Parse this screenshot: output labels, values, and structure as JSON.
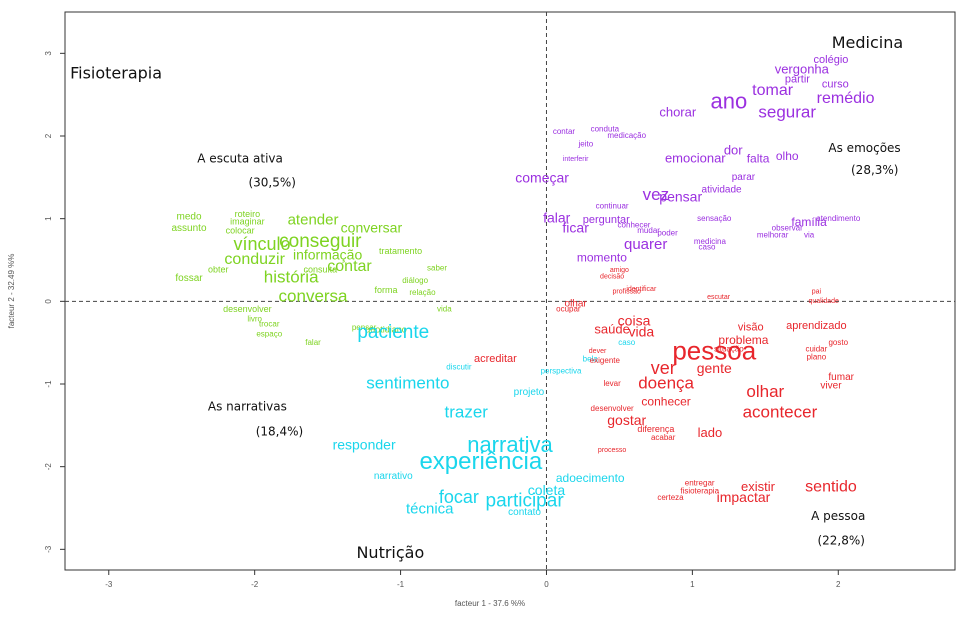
{
  "chart_data": {
    "type": "scatter",
    "xlabel": "facteur  1  - 37.6 %%",
    "ylabel": "facteur  2 - 32.49 %%",
    "xlim": [
      -3.3,
      2.8
    ],
    "ylim": [
      -3.25,
      3.5
    ],
    "x_ticks": [
      -3,
      -2,
      -1,
      0,
      1,
      2
    ],
    "x_tick_labels": [
      "-3",
      "-2",
      "-1",
      "0",
      "1",
      "2"
    ],
    "y_ticks": [
      -3,
      -2,
      -1,
      0,
      1,
      2,
      3
    ],
    "y_tick_labels": [
      "-3",
      "-2",
      "-1",
      "0",
      "1",
      "2",
      "3"
    ],
    "reference_lines": {
      "x": 0,
      "y": 0,
      "style": "dashed"
    },
    "colors": {
      "green": "#7ed321",
      "purple": "#9b30e0",
      "cyan": "#1ad6ec",
      "red": "#e8262c"
    },
    "annotations": [
      {
        "text": "Fisioterapia",
        "x": -2.95,
        "y": 2.75,
        "size": 16
      },
      {
        "text": "Medicina",
        "x": 2.2,
        "y": 3.12,
        "size": 16
      },
      {
        "text": "Nutrição",
        "x": -1.07,
        "y": -3.05,
        "size": 16
      },
      {
        "text": "A escuta ativa",
        "x": -2.1,
        "y": 1.72,
        "size": 12
      },
      {
        "text": "(30,5%)",
        "x": -1.88,
        "y": 1.43,
        "size": 12
      },
      {
        "text": "As emoções",
        "x": 2.18,
        "y": 1.85,
        "size": 12
      },
      {
        "text": "(28,3%)",
        "x": 2.25,
        "y": 1.58,
        "size": 12
      },
      {
        "text": "As narrativas",
        "x": -2.05,
        "y": -1.28,
        "size": 12
      },
      {
        "text": "(18,4%)",
        "x": -1.83,
        "y": -1.58,
        "size": 12
      },
      {
        "text": "A pessoa",
        "x": 2.0,
        "y": -2.6,
        "size": 12
      },
      {
        "text": "(22,8%)",
        "x": 2.02,
        "y": -2.9,
        "size": 12
      }
    ],
    "series": [
      {
        "name": "",
        "color_key": "green",
        "points": [
          {
            "label": "vínculo",
            "x": -1.95,
            "y": 0.68,
            "size": 18
          },
          {
            "label": "conseguir",
            "x": -1.55,
            "y": 0.72,
            "size": 19
          },
          {
            "label": "atender",
            "x": -1.6,
            "y": 0.98,
            "size": 15
          },
          {
            "label": "conversar",
            "x": -1.2,
            "y": 0.88,
            "size": 14
          },
          {
            "label": "informação",
            "x": -1.5,
            "y": 0.55,
            "size": 14
          },
          {
            "label": "conduzir",
            "x": -2.0,
            "y": 0.5,
            "size": 16
          },
          {
            "label": "contar",
            "x": -1.35,
            "y": 0.42,
            "size": 16
          },
          {
            "label": "história",
            "x": -1.75,
            "y": 0.28,
            "size": 17
          },
          {
            "label": "conversa",
            "x": -1.6,
            "y": 0.05,
            "size": 17
          },
          {
            "label": "medo",
            "x": -2.45,
            "y": 1.02,
            "size": 10
          },
          {
            "label": "roteiro",
            "x": -2.05,
            "y": 1.05,
            "size": 9
          },
          {
            "label": "imaginar",
            "x": -2.05,
            "y": 0.96,
            "size": 9
          },
          {
            "label": "assunto",
            "x": -2.45,
            "y": 0.88,
            "size": 10
          },
          {
            "label": "colocar",
            "x": -2.1,
            "y": 0.85,
            "size": 9
          },
          {
            "label": "fossar",
            "x": -2.45,
            "y": 0.28,
            "size": 10
          },
          {
            "label": "obter",
            "x": -2.25,
            "y": 0.38,
            "size": 9
          },
          {
            "label": "consulta",
            "x": -1.55,
            "y": 0.38,
            "size": 9
          },
          {
            "label": "quotidiano",
            "x": -1.1,
            "y": -0.35,
            "size": 9
          },
          {
            "label": "tratamento",
            "x": -1.0,
            "y": 0.6,
            "size": 9
          },
          {
            "label": "forma",
            "x": -1.1,
            "y": 0.13,
            "size": 9
          },
          {
            "label": "relação",
            "x": -0.85,
            "y": 0.1,
            "size": 8
          },
          {
            "label": "saber",
            "x": -0.75,
            "y": 0.4,
            "size": 8
          },
          {
            "label": "diálogo",
            "x": -0.9,
            "y": 0.25,
            "size": 8
          },
          {
            "label": "desenvolver",
            "x": -2.05,
            "y": -0.1,
            "size": 9
          },
          {
            "label": "livro",
            "x": -2.0,
            "y": -0.22,
            "size": 8
          },
          {
            "label": "trocar",
            "x": -1.9,
            "y": -0.28,
            "size": 8
          },
          {
            "label": "pensar",
            "x": -1.25,
            "y": -0.32,
            "size": 8
          },
          {
            "label": "falar",
            "x": -1.6,
            "y": -0.5,
            "size": 8
          },
          {
            "label": "espaço",
            "x": -1.9,
            "y": -0.4,
            "size": 8
          },
          {
            "label": "vida",
            "x": -0.7,
            "y": -0.1,
            "size": 8
          }
        ]
      },
      {
        "name": "",
        "color_key": "purple",
        "points": [
          {
            "label": "ano",
            "x": 1.25,
            "y": 2.4,
            "size": 22
          },
          {
            "label": "segurar",
            "x": 1.65,
            "y": 2.28,
            "size": 17
          },
          {
            "label": "tomar",
            "x": 1.55,
            "y": 2.55,
            "size": 16
          },
          {
            "label": "remédio",
            "x": 2.05,
            "y": 2.45,
            "size": 16
          },
          {
            "label": "vergonha",
            "x": 1.75,
            "y": 2.8,
            "size": 13
          },
          {
            "label": "colégio",
            "x": 1.95,
            "y": 2.92,
            "size": 11
          },
          {
            "label": "partir",
            "x": 1.72,
            "y": 2.68,
            "size": 11
          },
          {
            "label": "curso",
            "x": 1.98,
            "y": 2.62,
            "size": 11
          },
          {
            "label": "chorar",
            "x": 0.9,
            "y": 2.28,
            "size": 13
          },
          {
            "label": "dor",
            "x": 1.28,
            "y": 1.82,
            "size": 13
          },
          {
            "label": "emocionar",
            "x": 1.02,
            "y": 1.72,
            "size": 13
          },
          {
            "label": "falta",
            "x": 1.45,
            "y": 1.72,
            "size": 12
          },
          {
            "label": "olho",
            "x": 1.65,
            "y": 1.75,
            "size": 12
          },
          {
            "label": "começar",
            "x": -0.03,
            "y": 1.48,
            "size": 14
          },
          {
            "label": "vez",
            "x": 0.75,
            "y": 1.28,
            "size": 17
          },
          {
            "label": "pensar",
            "x": 0.92,
            "y": 1.25,
            "size": 14
          },
          {
            "label": "atividade",
            "x": 1.2,
            "y": 1.35,
            "size": 10
          },
          {
            "label": "falar",
            "x": 0.07,
            "y": 1.0,
            "size": 14
          },
          {
            "label": "ficar",
            "x": 0.2,
            "y": 0.88,
            "size": 14
          },
          {
            "label": "perguntar",
            "x": 0.41,
            "y": 0.98,
            "size": 11
          },
          {
            "label": "quarer",
            "x": 0.68,
            "y": 0.68,
            "size": 15
          },
          {
            "label": "família",
            "x": 1.8,
            "y": 0.95,
            "size": 12
          },
          {
            "label": "momento",
            "x": 0.38,
            "y": 0.52,
            "size": 12
          },
          {
            "label": "atendimento",
            "x": 2.0,
            "y": 1.0,
            "size": 8
          },
          {
            "label": "sensação",
            "x": 1.15,
            "y": 1.0,
            "size": 8
          },
          {
            "label": "continuar",
            "x": 0.45,
            "y": 1.15,
            "size": 8
          },
          {
            "label": "contar",
            "x": 0.12,
            "y": 2.05,
            "size": 8
          },
          {
            "label": "conduta",
            "x": 0.4,
            "y": 2.08,
            "size": 8
          },
          {
            "label": "medicação",
            "x": 0.55,
            "y": 2.0,
            "size": 8
          },
          {
            "label": "jeito",
            "x": 0.27,
            "y": 1.9,
            "size": 8
          },
          {
            "label": "interferir",
            "x": 0.2,
            "y": 1.72,
            "size": 7
          },
          {
            "label": "conhecer",
            "x": 0.6,
            "y": 0.92,
            "size": 8
          },
          {
            "label": "mudar",
            "x": 0.7,
            "y": 0.85,
            "size": 8
          },
          {
            "label": "poder",
            "x": 0.83,
            "y": 0.82,
            "size": 8
          },
          {
            "label": "medicina",
            "x": 1.12,
            "y": 0.72,
            "size": 8
          },
          {
            "label": "caso",
            "x": 1.1,
            "y": 0.65,
            "size": 8
          },
          {
            "label": "observar",
            "x": 1.65,
            "y": 0.88,
            "size": 8
          },
          {
            "label": "melhorar",
            "x": 1.55,
            "y": 0.8,
            "size": 8
          },
          {
            "label": "via",
            "x": 1.8,
            "y": 0.8,
            "size": 8
          },
          {
            "label": "parar",
            "x": 1.35,
            "y": 1.5,
            "size": 10
          }
        ]
      },
      {
        "name": "",
        "color_key": "cyan",
        "points": [
          {
            "label": "experiência",
            "x": -0.45,
            "y": -1.95,
            "size": 24
          },
          {
            "label": "narrativa",
            "x": -0.25,
            "y": -1.75,
            "size": 22
          },
          {
            "label": "participar",
            "x": -0.15,
            "y": -2.42,
            "size": 19
          },
          {
            "label": "focar",
            "x": -0.6,
            "y": -2.38,
            "size": 18
          },
          {
            "label": "técnica",
            "x": -0.8,
            "y": -2.52,
            "size": 15
          },
          {
            "label": "sentimento",
            "x": -0.95,
            "y": -1.0,
            "size": 17
          },
          {
            "label": "paciente",
            "x": -1.05,
            "y": -0.38,
            "size": 19
          },
          {
            "label": "trazer",
            "x": -0.55,
            "y": -1.35,
            "size": 17
          },
          {
            "label": "responder",
            "x": -1.25,
            "y": -1.75,
            "size": 14
          },
          {
            "label": "coleta",
            "x": 0.0,
            "y": -2.3,
            "size": 14
          },
          {
            "label": "adoecimento",
            "x": 0.3,
            "y": -2.15,
            "size": 12
          },
          {
            "label": "contato",
            "x": -0.15,
            "y": -2.55,
            "size": 10
          },
          {
            "label": "narrativo",
            "x": -1.05,
            "y": -2.12,
            "size": 10
          },
          {
            "label": "projeto",
            "x": -0.12,
            "y": -1.1,
            "size": 10
          },
          {
            "label": "bela",
            "x": 0.3,
            "y": -0.7,
            "size": 8
          },
          {
            "label": "perspectiva",
            "x": 0.1,
            "y": -0.85,
            "size": 8
          },
          {
            "label": "caso",
            "x": 0.55,
            "y": -0.5,
            "size": 8
          },
          {
            "label": "discutir",
            "x": -0.6,
            "y": -0.8,
            "size": 8
          }
        ]
      },
      {
        "name": "",
        "color_key": "red",
        "points": [
          {
            "label": "pessoa",
            "x": 1.15,
            "y": -0.62,
            "size": 26
          },
          {
            "label": "acontecer",
            "x": 1.6,
            "y": -1.35,
            "size": 17
          },
          {
            "label": "olhar",
            "x": 1.5,
            "y": -1.1,
            "size": 17
          },
          {
            "label": "doença",
            "x": 0.82,
            "y": -1.0,
            "size": 17
          },
          {
            "label": "ver",
            "x": 0.8,
            "y": -0.82,
            "size": 18
          },
          {
            "label": "gente",
            "x": 1.15,
            "y": -0.82,
            "size": 14
          },
          {
            "label": "coisa",
            "x": 0.6,
            "y": -0.25,
            "size": 14
          },
          {
            "label": "vida",
            "x": 0.65,
            "y": -0.38,
            "size": 14
          },
          {
            "label": "saúde",
            "x": 0.45,
            "y": -0.35,
            "size": 13
          },
          {
            "label": "sentido",
            "x": 1.95,
            "y": -2.25,
            "size": 16
          },
          {
            "label": "impactar",
            "x": 1.35,
            "y": -2.38,
            "size": 14
          },
          {
            "label": "existir",
            "x": 1.45,
            "y": -2.25,
            "size": 13
          },
          {
            "label": "gostar",
            "x": 0.55,
            "y": -1.45,
            "size": 14
          },
          {
            "label": "conhecer",
            "x": 0.82,
            "y": -1.22,
            "size": 12
          },
          {
            "label": "lado",
            "x": 1.12,
            "y": -1.6,
            "size": 13
          },
          {
            "label": "problema",
            "x": 1.35,
            "y": -0.48,
            "size": 12
          },
          {
            "label": "aprendizado",
            "x": 1.85,
            "y": -0.3,
            "size": 11
          },
          {
            "label": "visão",
            "x": 1.4,
            "y": -0.32,
            "size": 11
          },
          {
            "label": "acreditar",
            "x": -0.35,
            "y": -0.7,
            "size": 11
          },
          {
            "label": "fumar",
            "x": 2.02,
            "y": -0.92,
            "size": 10
          },
          {
            "label": "viver",
            "x": 1.95,
            "y": -1.02,
            "size": 10
          },
          {
            "label": "olhar",
            "x": 0.2,
            "y": -0.03,
            "size": 10
          },
          {
            "label": "diferença",
            "x": 0.75,
            "y": -1.55,
            "size": 9
          },
          {
            "label": "desenvolver",
            "x": 0.45,
            "y": -1.3,
            "size": 8
          },
          {
            "label": "acabar",
            "x": 0.8,
            "y": -1.65,
            "size": 8
          },
          {
            "label": "processo",
            "x": 0.45,
            "y": -1.8,
            "size": 7
          },
          {
            "label": "entregar",
            "x": 1.05,
            "y": -2.2,
            "size": 8
          },
          {
            "label": "fisioterapia",
            "x": 1.05,
            "y": -2.3,
            "size": 8
          },
          {
            "label": "certeza",
            "x": 0.85,
            "y": -2.38,
            "size": 8
          },
          {
            "label": "situação",
            "x": 1.25,
            "y": -0.58,
            "size": 8
          },
          {
            "label": "cuidar",
            "x": 1.85,
            "y": -0.58,
            "size": 8
          },
          {
            "label": "gosto",
            "x": 2.0,
            "y": -0.5,
            "size": 8
          },
          {
            "label": "plano",
            "x": 1.85,
            "y": -0.68,
            "size": 8
          },
          {
            "label": "escutar",
            "x": 1.18,
            "y": 0.05,
            "size": 7
          },
          {
            "label": "pai",
            "x": 1.85,
            "y": 0.12,
            "size": 7
          },
          {
            "label": "qualidade",
            "x": 1.9,
            "y": 0.0,
            "size": 7
          },
          {
            "label": "exigente",
            "x": 0.4,
            "y": -0.72,
            "size": 8
          },
          {
            "label": "levar",
            "x": 0.45,
            "y": -1.0,
            "size": 8
          },
          {
            "label": "amigo",
            "x": 0.5,
            "y": 0.38,
            "size": 7
          },
          {
            "label": "decisão",
            "x": 0.45,
            "y": 0.3,
            "size": 7
          },
          {
            "label": "profissão",
            "x": 0.55,
            "y": 0.12,
            "size": 7
          },
          {
            "label": "identificar",
            "x": 0.65,
            "y": 0.15,
            "size": 7
          },
          {
            "label": "ocupar",
            "x": 0.15,
            "y": -0.1,
            "size": 8
          },
          {
            "label": "dever",
            "x": 0.35,
            "y": -0.6,
            "size": 7
          }
        ]
      }
    ]
  }
}
